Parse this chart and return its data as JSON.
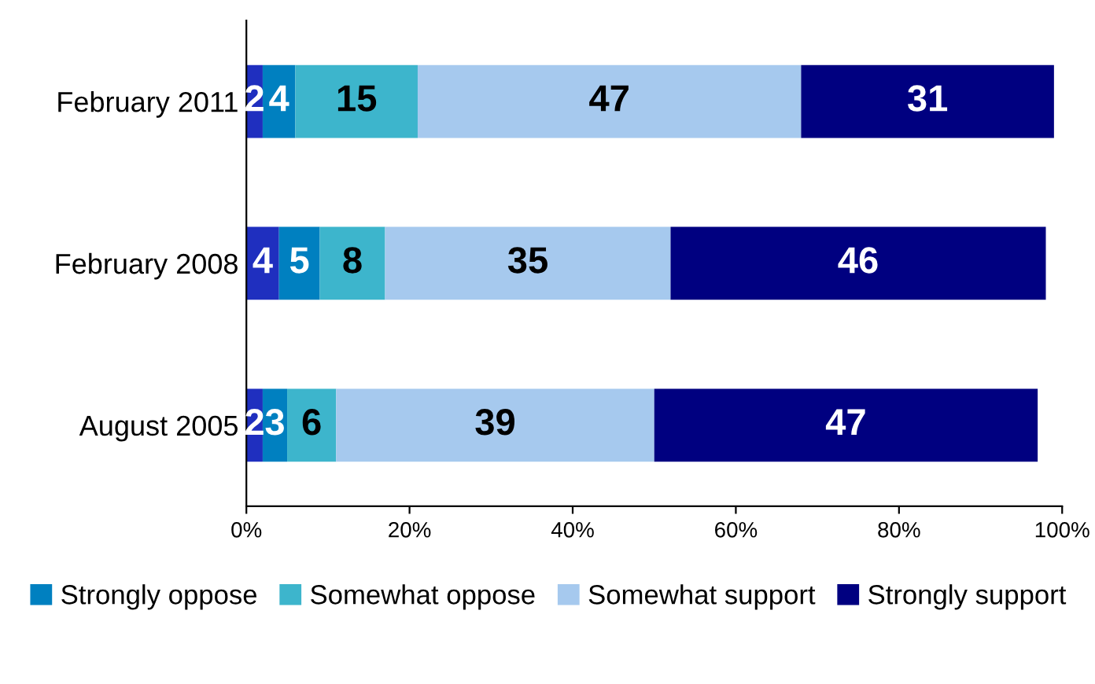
{
  "chart_data": {
    "type": "bar",
    "orientation": "horizontal",
    "stacked": true,
    "data_labels": true,
    "categories": [
      "February 2011",
      "February 2008",
      "August 2005"
    ],
    "series": [
      {
        "color": "#1f2fbf",
        "values": [
          2,
          4,
          2
        ]
      },
      {
        "name": "Strongly oppose",
        "color": "#0080c0",
        "values": [
          4,
          5,
          3
        ]
      },
      {
        "name": "Somewhat oppose",
        "color": "#3db5cc",
        "values": [
          15,
          8,
          6
        ]
      },
      {
        "name": "Somewhat support",
        "color": "#a6c9ee",
        "values": [
          47,
          35,
          39
        ]
      },
      {
        "name": "Strongly support",
        "color": "#000080",
        "values": [
          31,
          46,
          47
        ]
      }
    ],
    "xlim": [
      0,
      100
    ],
    "xticks": [
      {
        "value": 0,
        "label": "0%"
      },
      {
        "value": 20,
        "label": "20%"
      },
      {
        "value": 40,
        "label": "40%"
      },
      {
        "value": 60,
        "label": "60%"
      },
      {
        "value": 80,
        "label": "80%"
      },
      {
        "value": 100,
        "label": "100%"
      }
    ],
    "grid": false,
    "legend": "bottom"
  }
}
